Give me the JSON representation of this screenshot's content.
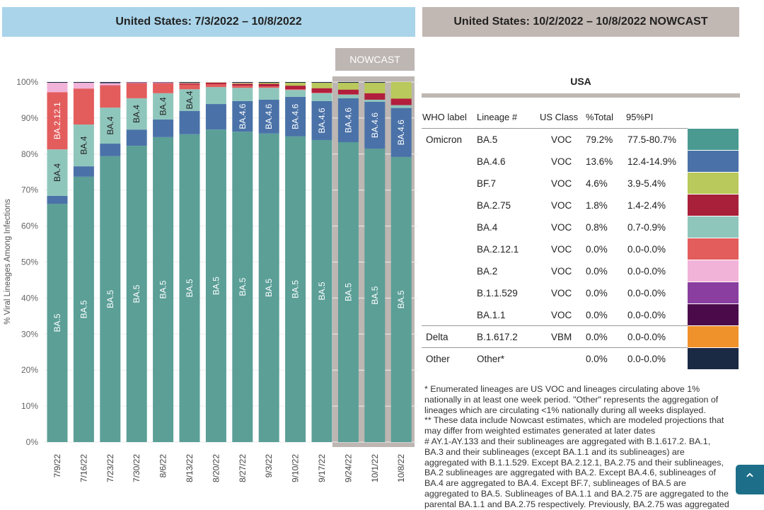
{
  "left_header": "United States: 7/3/2022 – 10/8/2022",
  "right_header": "United States: 10/2/2022 – 10/8/2022 NOWCAST",
  "nowcast_label": "NOWCAST",
  "chart_data": {
    "type": "bar",
    "stacked": true,
    "ylabel": "% Viral Lineages Among Infections",
    "ylim": [
      0,
      100
    ],
    "yticks": [
      "0%",
      "10%",
      "20%",
      "30%",
      "40%",
      "50%",
      "60%",
      "70%",
      "80%",
      "90%",
      "100%"
    ],
    "categories": [
      "7/9/22",
      "7/16/22",
      "7/23/22",
      "7/30/22",
      "8/6/22",
      "8/13/22",
      "8/20/22",
      "8/27/22",
      "9/3/22",
      "9/10/22",
      "9/17/22",
      "9/24/22",
      "10/1/22",
      "10/8/22"
    ],
    "nowcast_categories": [
      "9/24/22",
      "10/1/22",
      "10/8/22"
    ],
    "series": [
      {
        "name": "BA.5",
        "color": "#5b9f97",
        "values": [
          66.2,
          73.7,
          79.4,
          82.3,
          84.7,
          85.5,
          86.8,
          86.2,
          85.7,
          84.9,
          83.9,
          83.3,
          81.5,
          79.2
        ]
      },
      {
        "name": "BA.4.6",
        "color": "#4a72a8",
        "values": [
          2.2,
          2.9,
          3.5,
          4.5,
          4.9,
          6.5,
          7.1,
          8.5,
          9.4,
          11.0,
          10.8,
          12.2,
          13.0,
          13.6
        ]
      },
      {
        "name": "BA.4",
        "color": "#8fc6bc",
        "values": [
          12.9,
          11.6,
          10.0,
          8.7,
          7.3,
          6.0,
          4.7,
          3.7,
          3.3,
          1.9,
          2.2,
          1.0,
          0.6,
          0.8
        ]
      },
      {
        "name": "BA.2.12.1",
        "color": "#e35d5d",
        "values": [
          15.9,
          10.0,
          6.1,
          4.1,
          2.7,
          1.3,
          0.8,
          0.6,
          0.4,
          0.2,
          0.1,
          0.1,
          0.0,
          0.0
        ]
      },
      {
        "name": "BA.2.75",
        "color": "#b21f3c",
        "values": [
          0.0,
          0.0,
          0.1,
          0.1,
          0.1,
          0.3,
          0.4,
          0.5,
          0.7,
          1.0,
          1.3,
          1.3,
          1.8,
          1.8
        ]
      },
      {
        "name": "BF.7",
        "color": "#b9c95b",
        "values": [
          0.0,
          0.0,
          0.0,
          0.0,
          0.0,
          0.1,
          0.1,
          0.2,
          0.3,
          0.8,
          1.5,
          1.9,
          2.9,
          4.6
        ]
      },
      {
        "name": "BA.2",
        "color": "#f2b3d9",
        "values": [
          2.6,
          1.6,
          0.6,
          0.2,
          0.2,
          0.1,
          0.1,
          0.1,
          0.0,
          0.0,
          0.0,
          0.0,
          0.0,
          0.0
        ]
      },
      {
        "name": "Other",
        "color": "#1b2a44",
        "values": [
          0.2,
          0.2,
          0.3,
          0.1,
          0.1,
          0.2,
          0.0,
          0.2,
          0.2,
          0.2,
          0.2,
          0.2,
          0.2,
          0.0
        ]
      }
    ],
    "data_labels": [
      {
        "series": "BA.5",
        "bars": [
          0,
          1,
          2,
          3,
          4,
          5,
          6,
          7,
          8,
          9,
          10,
          11,
          12,
          13
        ]
      },
      {
        "series": "BA.4",
        "bars": [
          0,
          1,
          2,
          3,
          4,
          5
        ]
      },
      {
        "series": "BA.2.12.1",
        "bars": [
          0
        ]
      },
      {
        "series": "BA.4.6",
        "bars": [
          7,
          8,
          9,
          10,
          11,
          12,
          13
        ]
      }
    ]
  },
  "table": {
    "title": "USA",
    "headers": [
      "WHO label",
      "Lineage #",
      "US Class",
      "%Total",
      "95%PI"
    ],
    "rows": [
      {
        "who": "Omicron",
        "lineage": "BA.5",
        "cls": "VOC",
        "total": "79.2%",
        "pi": "77.5-80.7%",
        "color": "#4a9a92"
      },
      {
        "who": "",
        "lineage": "BA.4.6",
        "cls": "VOC",
        "total": "13.6%",
        "pi": "12.4-14.9%",
        "color": "#4a72a8"
      },
      {
        "who": "",
        "lineage": "BF.7",
        "cls": "VOC",
        "total": "4.6%",
        "pi": "3.9-5.4%",
        "color": "#b9c95b"
      },
      {
        "who": "",
        "lineage": "BA.2.75",
        "cls": "VOC",
        "total": "1.8%",
        "pi": "1.4-2.4%",
        "color": "#a8203a"
      },
      {
        "who": "",
        "lineage": "BA.4",
        "cls": "VOC",
        "total": "0.8%",
        "pi": "0.7-0.9%",
        "color": "#8fc6bc"
      },
      {
        "who": "",
        "lineage": "BA.2.12.1",
        "cls": "VOC",
        "total": "0.0%",
        "pi": "0.0-0.0%",
        "color": "#e35d5d"
      },
      {
        "who": "",
        "lineage": "BA.2",
        "cls": "VOC",
        "total": "0.0%",
        "pi": "0.0-0.0%",
        "color": "#f2b3d9"
      },
      {
        "who": "",
        "lineage": "B.1.1.529",
        "cls": "VOC",
        "total": "0.0%",
        "pi": "0.0-0.0%",
        "color": "#8a3fa0"
      },
      {
        "who": "",
        "lineage": "BA.1.1",
        "cls": "VOC",
        "total": "0.0%",
        "pi": "0.0-0.0%",
        "color": "#4b0b4b"
      },
      {
        "who": "Delta",
        "lineage": "B.1.617.2",
        "cls": "VBM",
        "total": "0.0%",
        "pi": "0.0-0.0%",
        "color": "#f0922b"
      },
      {
        "who": "Other",
        "lineage": "Other*",
        "cls": "",
        "total": "0.0%",
        "pi": "0.0-0.0%",
        "color": "#1b2a44"
      }
    ]
  },
  "notes": [
    "*      Enumerated lineages are US VOC and lineages circulating above 1% nationally in at least one week period. \"Other\" represents the aggregation of lineages which are circulating <1% nationally during all weeks displayed.",
    "**      These data include Nowcast estimates, which are modeled projections that may differ from weighted estimates generated at later dates",
    "#      AY.1-AY.133 and their sublineages are aggregated with B.1.617.2. BA.1, BA.3 and their sublineages (except BA.1.1 and its sublineages) are aggregated with B.1.1.529. Except BA.2.12.1, BA.2.75 and their sublineages, BA.2 sublineages are aggregated with BA.2. Except BA.4.6, sublineages of BA.4 are aggregated to BA.4. Except BF.7, sublineages of BA.5 are aggregated to BA.5. Sublineages of BA.1.1 and BA.2.75 are aggregated to the parental BA.1.1 and BA.2.75 respectively. Previously, BA.2.75 was aggregated"
  ],
  "scroll_top_icon": "chevron-up-icon"
}
